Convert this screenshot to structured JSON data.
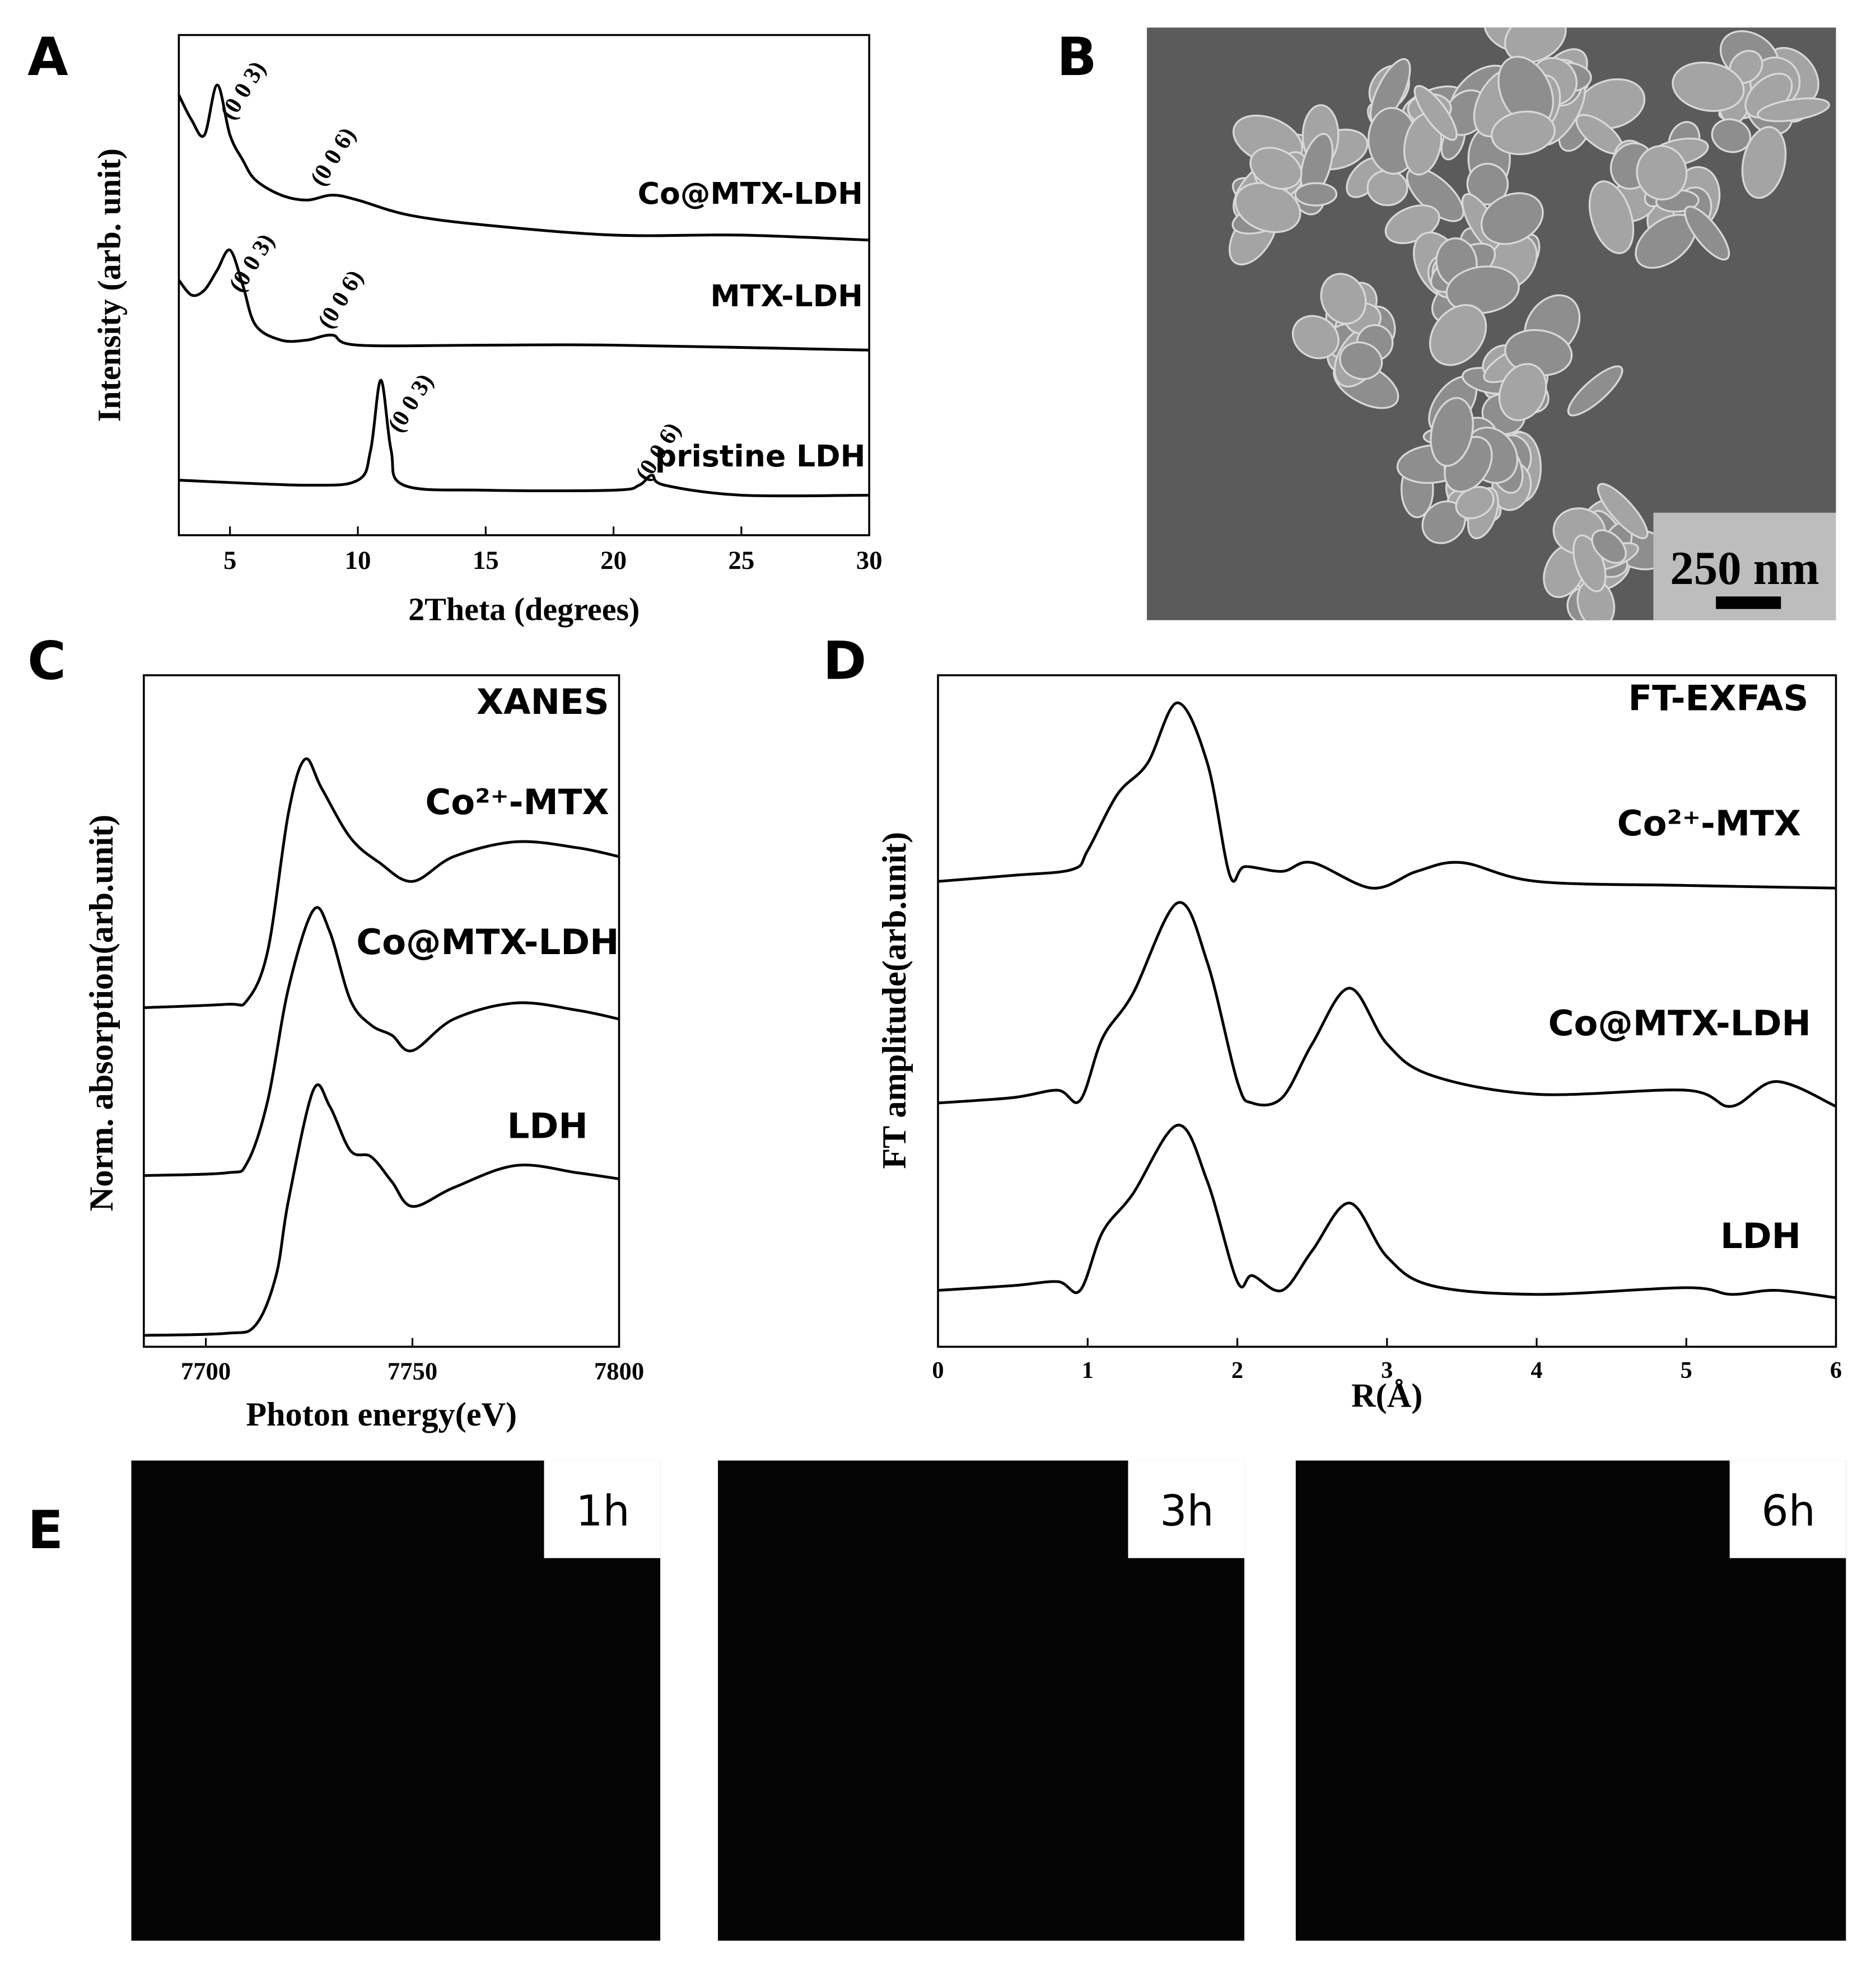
{
  "panel_labels": [
    "A",
    "B",
    "C",
    "D",
    "E"
  ],
  "chart_data": [
    {
      "type": "line",
      "xlabel": "2Theta (degrees)",
      "ylabel": "Intensity (arb. unit)",
      "xlim": [
        3,
        30
      ],
      "xticks": [
        5,
        10,
        15,
        20,
        25,
        30
      ],
      "ylim": [
        0,
        100
      ],
      "annotations": [
        "(0 0 3)",
        "(0 0 6)",
        "(0 0 3)",
        "(0 0 6)",
        "(0 0 3)",
        "(0 0 6)"
      ],
      "series": [
        {
          "name": "Co@MTX-LDH",
          "color": "#000000",
          "x": [
            3,
            3.5,
            4,
            4.5,
            5,
            5.5,
            6,
            7,
            8,
            9,
            10,
            12,
            15,
            20,
            25,
            30
          ],
          "values": [
            88,
            83,
            80,
            90,
            80,
            75,
            71,
            68,
            67,
            68,
            67,
            64,
            62,
            60,
            60,
            59
          ]
        },
        {
          "name": "MTX-LDH",
          "color": "#000000",
          "x": [
            3,
            3.5,
            4,
            4.5,
            5,
            5.5,
            6,
            7,
            8,
            9,
            10,
            15,
            20,
            30
          ],
          "values": [
            51,
            48,
            49,
            53,
            57,
            50,
            42,
            39,
            39,
            40,
            38,
            38,
            38,
            37
          ]
        },
        {
          "name": "pristine LDH",
          "color": "#000000",
          "x": [
            3,
            8,
            10,
            10.5,
            10.9,
            11.3,
            11.8,
            15,
            20,
            21,
            21.5,
            22,
            25,
            30
          ],
          "values": [
            11,
            10,
            11,
            17,
            31,
            17,
            10,
            9,
            9,
            10,
            12,
            10,
            8,
            8
          ]
        }
      ]
    },
    {
      "type": "line",
      "xlabel": "Photon energy(eV)",
      "ylabel": "Norm. absorption(arb.unit)",
      "xlim": [
        7685,
        7800
      ],
      "xticks": [
        7700,
        7750,
        7800
      ],
      "ylim": [
        0,
        100
      ],
      "annotation": "XANES",
      "series": [
        {
          "name": "Co²⁺-MTX",
          "color": "#000000",
          "x": [
            7685,
            7705,
            7710,
            7715,
            7720,
            7724,
            7728,
            7735,
            7742,
            7750,
            7760,
            7775,
            7790,
            7800
          ],
          "values": [
            50.5,
            51,
            51.6,
            59,
            79.5,
            87.5,
            83.2,
            75.8,
            72.1,
            69.3,
            73,
            75.2,
            74.3,
            73
          ]
        },
        {
          "name": "Co@MTX-LDH",
          "color": "#000000",
          "x": [
            7685,
            7705,
            7710,
            7715,
            7720,
            7726,
            7730,
            7735,
            7740,
            7745,
            7750,
            7760,
            7775,
            7790,
            7800
          ],
          "values": [
            25.5,
            25.9,
            27.4,
            36.7,
            53.4,
            65,
            61.8,
            51.6,
            47.9,
            46.4,
            44.1,
            48.8,
            51.2,
            50.1,
            48.8
          ]
        },
        {
          "name": "LDH",
          "color": "#000000",
          "x": [
            7685,
            7705,
            7712,
            7717,
            7720,
            7726,
            7730,
            7735,
            7740,
            7745,
            7750,
            7760,
            7775,
            7790,
            7800
          ],
          "values": [
            1.7,
            2,
            3.2,
            10.6,
            21.8,
            38.2,
            35.8,
            29.2,
            28.3,
            24.6,
            20.9,
            23.7,
            27,
            25.9,
            25
          ]
        }
      ]
    },
    {
      "type": "line",
      "xlabel": "R(Å)",
      "ylabel": "FT amplitude(arb.unit)",
      "xlim": [
        0,
        6
      ],
      "xticks": [
        0,
        1,
        2,
        3,
        4,
        5,
        6
      ],
      "ylim": [
        0,
        100
      ],
      "annotation": "FT-EXFAS",
      "series": [
        {
          "name": "Co²⁺-MTX",
          "color": "#000000",
          "x": [
            0,
            0.5,
            0.9,
            1,
            1.2,
            1.4,
            1.6,
            1.8,
            1.95,
            2.05,
            2.3,
            2.5,
            2.9,
            3.2,
            3.5,
            4,
            5,
            6
          ],
          "values": [
            69.3,
            70.2,
            71.1,
            73.9,
            82.3,
            86.9,
            95.9,
            86.9,
            70.2,
            71.5,
            70.8,
            72.1,
            68.3,
            70.8,
            72.1,
            69.3,
            68.7,
            68.3
          ]
        },
        {
          "name": "Co@MTX-LDH",
          "color": "#000000",
          "x": [
            0,
            0.5,
            0.8,
            0.95,
            1.1,
            1.3,
            1.6,
            1.8,
            2,
            2.1,
            2.3,
            2.5,
            2.75,
            3,
            3.3,
            4,
            5,
            5.3,
            5.6,
            6
          ],
          "values": [
            36.3,
            37.1,
            38.2,
            36.7,
            46,
            52.5,
            66.1,
            57.2,
            39.5,
            36.3,
            37.1,
            45.1,
            53.4,
            45.1,
            40.4,
            37.6,
            38.2,
            35.8,
            39.5,
            35.8
          ]
        },
        {
          "name": "LDH",
          "color": "#000000",
          "x": [
            0,
            0.5,
            0.8,
            0.95,
            1.1,
            1.3,
            1.6,
            1.8,
            2,
            2.1,
            2.3,
            2.5,
            2.75,
            3,
            3.3,
            4,
            5,
            5.3,
            5.6,
            6
          ],
          "values": [
            8.4,
            9.1,
            9.7,
            8.4,
            17.1,
            22.7,
            33,
            24.6,
            9.7,
            10.6,
            8.4,
            14.3,
            21.4,
            13.4,
            9.1,
            7.8,
            8.8,
            7.8,
            8.4,
            7.3
          ]
        }
      ]
    }
  ],
  "sem_image": {
    "scale_bar": "250 nm"
  },
  "ct_images": [
    {
      "time": "1h"
    },
    {
      "time": "3h"
    },
    {
      "time": "6h"
    }
  ]
}
